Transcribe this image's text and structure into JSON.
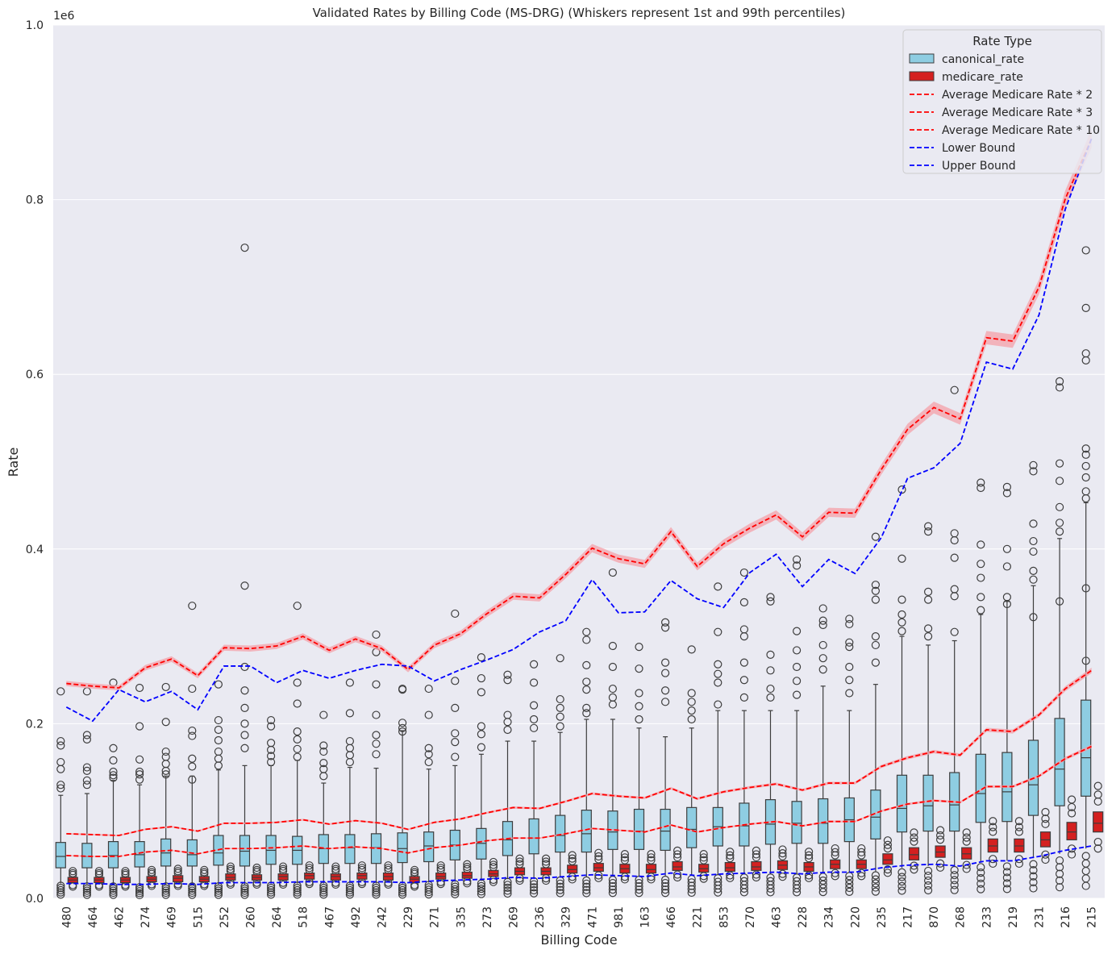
{
  "chart_data": {
    "type": "box",
    "title": "Validated Rates by Billing Code (MS-DRG) (Whiskers represent 1st and 99th percentiles)",
    "xlabel": "Billing Code",
    "ylabel": "Rate",
    "y_offset_label": "1e6",
    "ylim": [
      0,
      1000000
    ],
    "ytick_labels": [
      "0.0",
      "0.2",
      "0.4",
      "0.6",
      "0.8",
      "1.0"
    ],
    "yticks": [
      0,
      200000,
      400000,
      600000,
      800000,
      1000000
    ],
    "categories": [
      "480",
      "464",
      "462",
      "274",
      "469",
      "515",
      "252",
      "260",
      "264",
      "518",
      "467",
      "492",
      "242",
      "229",
      "271",
      "335",
      "273",
      "269",
      "236",
      "329",
      "471",
      "981",
      "163",
      "466",
      "221",
      "853",
      "270",
      "463",
      "228",
      "234",
      "220",
      "235",
      "217",
      "870",
      "268",
      "233",
      "219",
      "231",
      "216",
      "215"
    ],
    "canonical_rate": {
      "q1": [
        35000,
        35000,
        35000,
        36000,
        37000,
        37000,
        38000,
        37000,
        39000,
        39000,
        40000,
        40000,
        40000,
        41000,
        42000,
        44000,
        45000,
        49000,
        51000,
        53000,
        53000,
        56000,
        56000,
        55000,
        58000,
        60000,
        60000,
        62000,
        63000,
        63000,
        65000,
        68000,
        76000,
        77000,
        77000,
        87000,
        88000,
        95000,
        106000,
        117000
      ],
      "median": [
        48000,
        48000,
        49000,
        50000,
        52000,
        50000,
        52000,
        54000,
        55000,
        55000,
        57000,
        58000,
        58000,
        57000,
        60000,
        61000,
        63000,
        67000,
        69000,
        72000,
        74000,
        76000,
        77000,
        77000,
        79000,
        82000,
        83000,
        85000,
        86000,
        86000,
        90000,
        93000,
        103000,
        106000,
        107000,
        120000,
        122000,
        130000,
        148000,
        161000
      ],
      "q3": [
        64000,
        63000,
        65000,
        65000,
        68000,
        67000,
        72000,
        72000,
        72000,
        71000,
        73000,
        73000,
        74000,
        75000,
        76000,
        78000,
        80000,
        88000,
        91000,
        95000,
        101000,
        100000,
        102000,
        102000,
        104000,
        104000,
        109000,
        113000,
        111000,
        114000,
        115000,
        124000,
        141000,
        141000,
        144000,
        165000,
        167000,
        181000,
        206000,
        227000
      ],
      "wlow": [
        17000,
        16000,
        16000,
        15000,
        16000,
        16000,
        16000,
        16000,
        17000,
        17000,
        17000,
        17000,
        17000,
        17000,
        18000,
        19000,
        20000,
        22000,
        23000,
        24000,
        24000,
        25000,
        25000,
        25000,
        26000,
        27000,
        28000,
        28000,
        28000,
        29000,
        30000,
        31000,
        35000,
        37000,
        38000,
        42000,
        43000,
        46000,
        51000,
        57000
      ],
      "whigh": [
        118000,
        120000,
        135000,
        130000,
        140000,
        140000,
        147000,
        152000,
        152000,
        158000,
        132000,
        150000,
        149000,
        192000,
        148000,
        152000,
        165000,
        180000,
        180000,
        190000,
        205000,
        205000,
        195000,
        185000,
        195000,
        215000,
        215000,
        215000,
        215000,
        243000,
        215000,
        245000,
        300000,
        290000,
        295000,
        325000,
        340000,
        358000,
        412000,
        453000
      ]
    },
    "medicare_rate": {
      "q1": [
        18000,
        18000,
        18000,
        19000,
        19000,
        19000,
        21000,
        21000,
        21000,
        22000,
        21000,
        22000,
        21000,
        18000,
        22000,
        23000,
        25000,
        27000,
        27000,
        29000,
        31000,
        29000,
        29000,
        32000,
        30000,
        31000,
        32000,
        33000,
        31000,
        34000,
        34000,
        39000,
        44000,
        47000,
        45000,
        53000,
        53000,
        59000,
        67000,
        76000
      ],
      "median": [
        21000,
        21000,
        21000,
        22000,
        23000,
        22000,
        24000,
        24000,
        25000,
        26000,
        25000,
        26000,
        25000,
        22000,
        25000,
        26000,
        28000,
        31000,
        31000,
        33000,
        35000,
        34000,
        33000,
        36000,
        34000,
        35000,
        36000,
        38000,
        36000,
        39000,
        39000,
        44000,
        50000,
        53000,
        51000,
        60000,
        60000,
        67000,
        76000,
        86000
      ],
      "q3": [
        24000,
        24000,
        24000,
        25000,
        26000,
        25000,
        28000,
        27000,
        28000,
        29000,
        28000,
        29000,
        29000,
        25000,
        29000,
        30000,
        32000,
        35000,
        35000,
        38000,
        40000,
        39000,
        39000,
        42000,
        39000,
        41000,
        42000,
        43000,
        41000,
        44000,
        44000,
        51000,
        58000,
        60000,
        58000,
        68000,
        68000,
        76000,
        87000,
        99000
      ]
    },
    "series": [
      {
        "name": "Average Medicare Rate * 2",
        "values": [
          49000,
          48000,
          48000,
          53000,
          55000,
          51000,
          57000,
          57000,
          58000,
          60000,
          57000,
          59000,
          57000,
          52000,
          58000,
          61000,
          66000,
          69000,
          69000,
          74000,
          80000,
          78000,
          76000,
          84000,
          76000,
          81000,
          85000,
          88000,
          83000,
          88000,
          88000,
          100000,
          108000,
          112000,
          110000,
          128000,
          128000,
          140000,
          160000,
          174000
        ]
      },
      {
        "name": "Average Medicare Rate * 3",
        "values": [
          74000,
          73000,
          72000,
          79000,
          82000,
          77000,
          86000,
          86000,
          87000,
          90000,
          85000,
          89000,
          86000,
          79000,
          87000,
          91000,
          98000,
          104000,
          103000,
          111000,
          120000,
          117000,
          115000,
          126000,
          114000,
          122000,
          127000,
          131000,
          124000,
          132000,
          132000,
          151000,
          161000,
          168000,
          164000,
          193000,
          191000,
          210000,
          240000,
          261000
        ]
      },
      {
        "name": "Average Medicare Rate * 10",
        "values": [
          246000,
          243000,
          241000,
          264000,
          274000,
          255000,
          287000,
          286000,
          289000,
          300000,
          284000,
          297000,
          286000,
          262000,
          290000,
          303000,
          326000,
          346000,
          344000,
          371000,
          401000,
          389000,
          383000,
          420000,
          380000,
          406000,
          424000,
          439000,
          414000,
          442000,
          441000,
          491000,
          537000,
          562000,
          549000,
          642000,
          638000,
          700000,
          801000,
          870000
        ]
      },
      {
        "name": "Lower Bound",
        "values": [
          17000,
          17000,
          16000,
          16000,
          17000,
          16000,
          18000,
          18000,
          18000,
          19000,
          19000,
          19000,
          19000,
          18000,
          20000,
          21000,
          22000,
          24000,
          23000,
          25000,
          27000,
          26000,
          25000,
          29000,
          26000,
          28000,
          29000,
          30000,
          28000,
          30000,
          30000,
          35000,
          38000,
          39000,
          37000,
          43000,
          43000,
          48000,
          55000,
          60000
        ]
      },
      {
        "name": "Upper Bound",
        "values": [
          219000,
          203000,
          239000,
          225000,
          237000,
          216000,
          266000,
          266000,
          247000,
          261000,
          252000,
          261000,
          268000,
          266000,
          249000,
          262000,
          273000,
          285000,
          305000,
          318000,
          365000,
          327000,
          328000,
          364000,
          343000,
          333000,
          373000,
          394000,
          357000,
          388000,
          372000,
          413000,
          481000,
          493000,
          521000,
          614000,
          606000,
          668000,
          789000,
          870000
        ]
      }
    ],
    "outliers_canonical_high": [
      [
        237000,
        180000,
        175000,
        156000,
        148000,
        130000,
        126000
      ],
      [
        237000,
        187000,
        182000,
        150000,
        146000,
        135000,
        130000
      ],
      [
        247000,
        172000,
        158000,
        145000,
        141000,
        138000
      ],
      [
        241000,
        197000,
        159000,
        145000,
        142000,
        136000
      ],
      [
        242000,
        202000,
        168000,
        162000,
        154000,
        146000,
        142000
      ],
      [
        335000,
        240000,
        192000,
        186000,
        160000,
        151000,
        136000
      ],
      [
        245000,
        204000,
        193000,
        181000,
        168000,
        160000,
        152000
      ],
      [
        745000,
        358000,
        265000,
        238000,
        218000,
        200000,
        187000,
        172000
      ],
      [
        204000,
        197000,
        178000,
        170000,
        163000,
        156000
      ],
      [
        335000,
        247000,
        223000,
        191000,
        182000,
        171000,
        162000
      ],
      [
        210000,
        175000,
        168000,
        155000,
        148000,
        140000
      ],
      [
        247000,
        212000,
        180000,
        172000,
        164000,
        156000
      ],
      [
        302000,
        282000,
        245000,
        210000,
        187000,
        177000,
        165000
      ],
      [
        240000,
        239000,
        201000,
        195000,
        191000
      ],
      [
        240000,
        210000,
        172000,
        165000,
        156000
      ],
      [
        326000,
        249000,
        218000,
        189000,
        179000,
        162000
      ],
      [
        276000,
        252000,
        236000,
        197000,
        188000,
        173000
      ],
      [
        256000,
        250000,
        210000,
        202000,
        193000
      ],
      [
        268000,
        247000,
        221000,
        205000,
        195000
      ],
      [
        275000,
        228000,
        218000,
        208000,
        197000
      ],
      [
        305000,
        296000,
        267000,
        248000,
        239000,
        218000,
        212000
      ],
      [
        373000,
        289000,
        265000,
        240000,
        230000,
        222000
      ],
      [
        288000,
        263000,
        235000,
        220000,
        205000
      ],
      [
        316000,
        310000,
        270000,
        258000,
        238000,
        225000
      ],
      [
        285000,
        235000,
        225000,
        215000,
        205000
      ],
      [
        357000,
        305000,
        268000,
        257000,
        247000,
        222000
      ],
      [
        373000,
        339000,
        308000,
        300000,
        270000,
        250000,
        230000
      ],
      [
        345000,
        340000,
        279000,
        261000,
        240000,
        230000
      ],
      [
        388000,
        381000,
        306000,
        284000,
        265000,
        249000,
        233000
      ],
      [
        332000,
        318000,
        313000,
        290000,
        275000,
        262000
      ],
      [
        320000,
        314000,
        293000,
        288000,
        265000,
        250000,
        235000
      ],
      [
        414000,
        359000,
        352000,
        342000,
        300000,
        290000,
        270000
      ],
      [
        468000,
        389000,
        342000,
        325000,
        316000,
        306000
      ],
      [
        426000,
        420000,
        351000,
        342000,
        309000,
        300000
      ],
      [
        582000,
        418000,
        410000,
        390000,
        354000,
        346000,
        305000
      ],
      [
        476000,
        470000,
        405000,
        383000,
        367000,
        345000,
        330000
      ],
      [
        471000,
        464000,
        400000,
        380000,
        345000,
        337000
      ],
      [
        496000,
        489000,
        429000,
        409000,
        397000,
        375000,
        365000,
        322000
      ],
      [
        592000,
        585000,
        498000,
        478000,
        448000,
        430000,
        420000,
        340000
      ],
      [
        742000,
        676000,
        624000,
        616000,
        515000,
        508000,
        495000,
        482000,
        466000,
        458000,
        355000,
        272000
      ]
    ]
  },
  "legend": {
    "title": "Rate Type",
    "items": [
      {
        "label": "canonical_rate",
        "kind": "patch",
        "color": "#8ecde2"
      },
      {
        "label": "medicare_rate",
        "kind": "patch",
        "color": "#d42020"
      },
      {
        "label": "Average Medicare Rate * 2",
        "kind": "line",
        "color": "#ff0000"
      },
      {
        "label": "Average Medicare Rate * 3",
        "kind": "line",
        "color": "#ff0000"
      },
      {
        "label": "Average Medicare Rate * 10",
        "kind": "line",
        "color": "#ff0000"
      },
      {
        "label": "Lower Bound",
        "kind": "line",
        "color": "#0000ff"
      },
      {
        "label": "Upper Bound",
        "kind": "line",
        "color": "#0000ff"
      }
    ]
  },
  "colors": {
    "background": "#eaeaf2",
    "grid": "#ffffff",
    "canonical": "#8ecde2",
    "medicare": "#d42020",
    "avg_line": "#ff0000",
    "band": "#f4a0a8",
    "bound_line": "#0000ff",
    "box_edge": "#3d3d3d"
  }
}
